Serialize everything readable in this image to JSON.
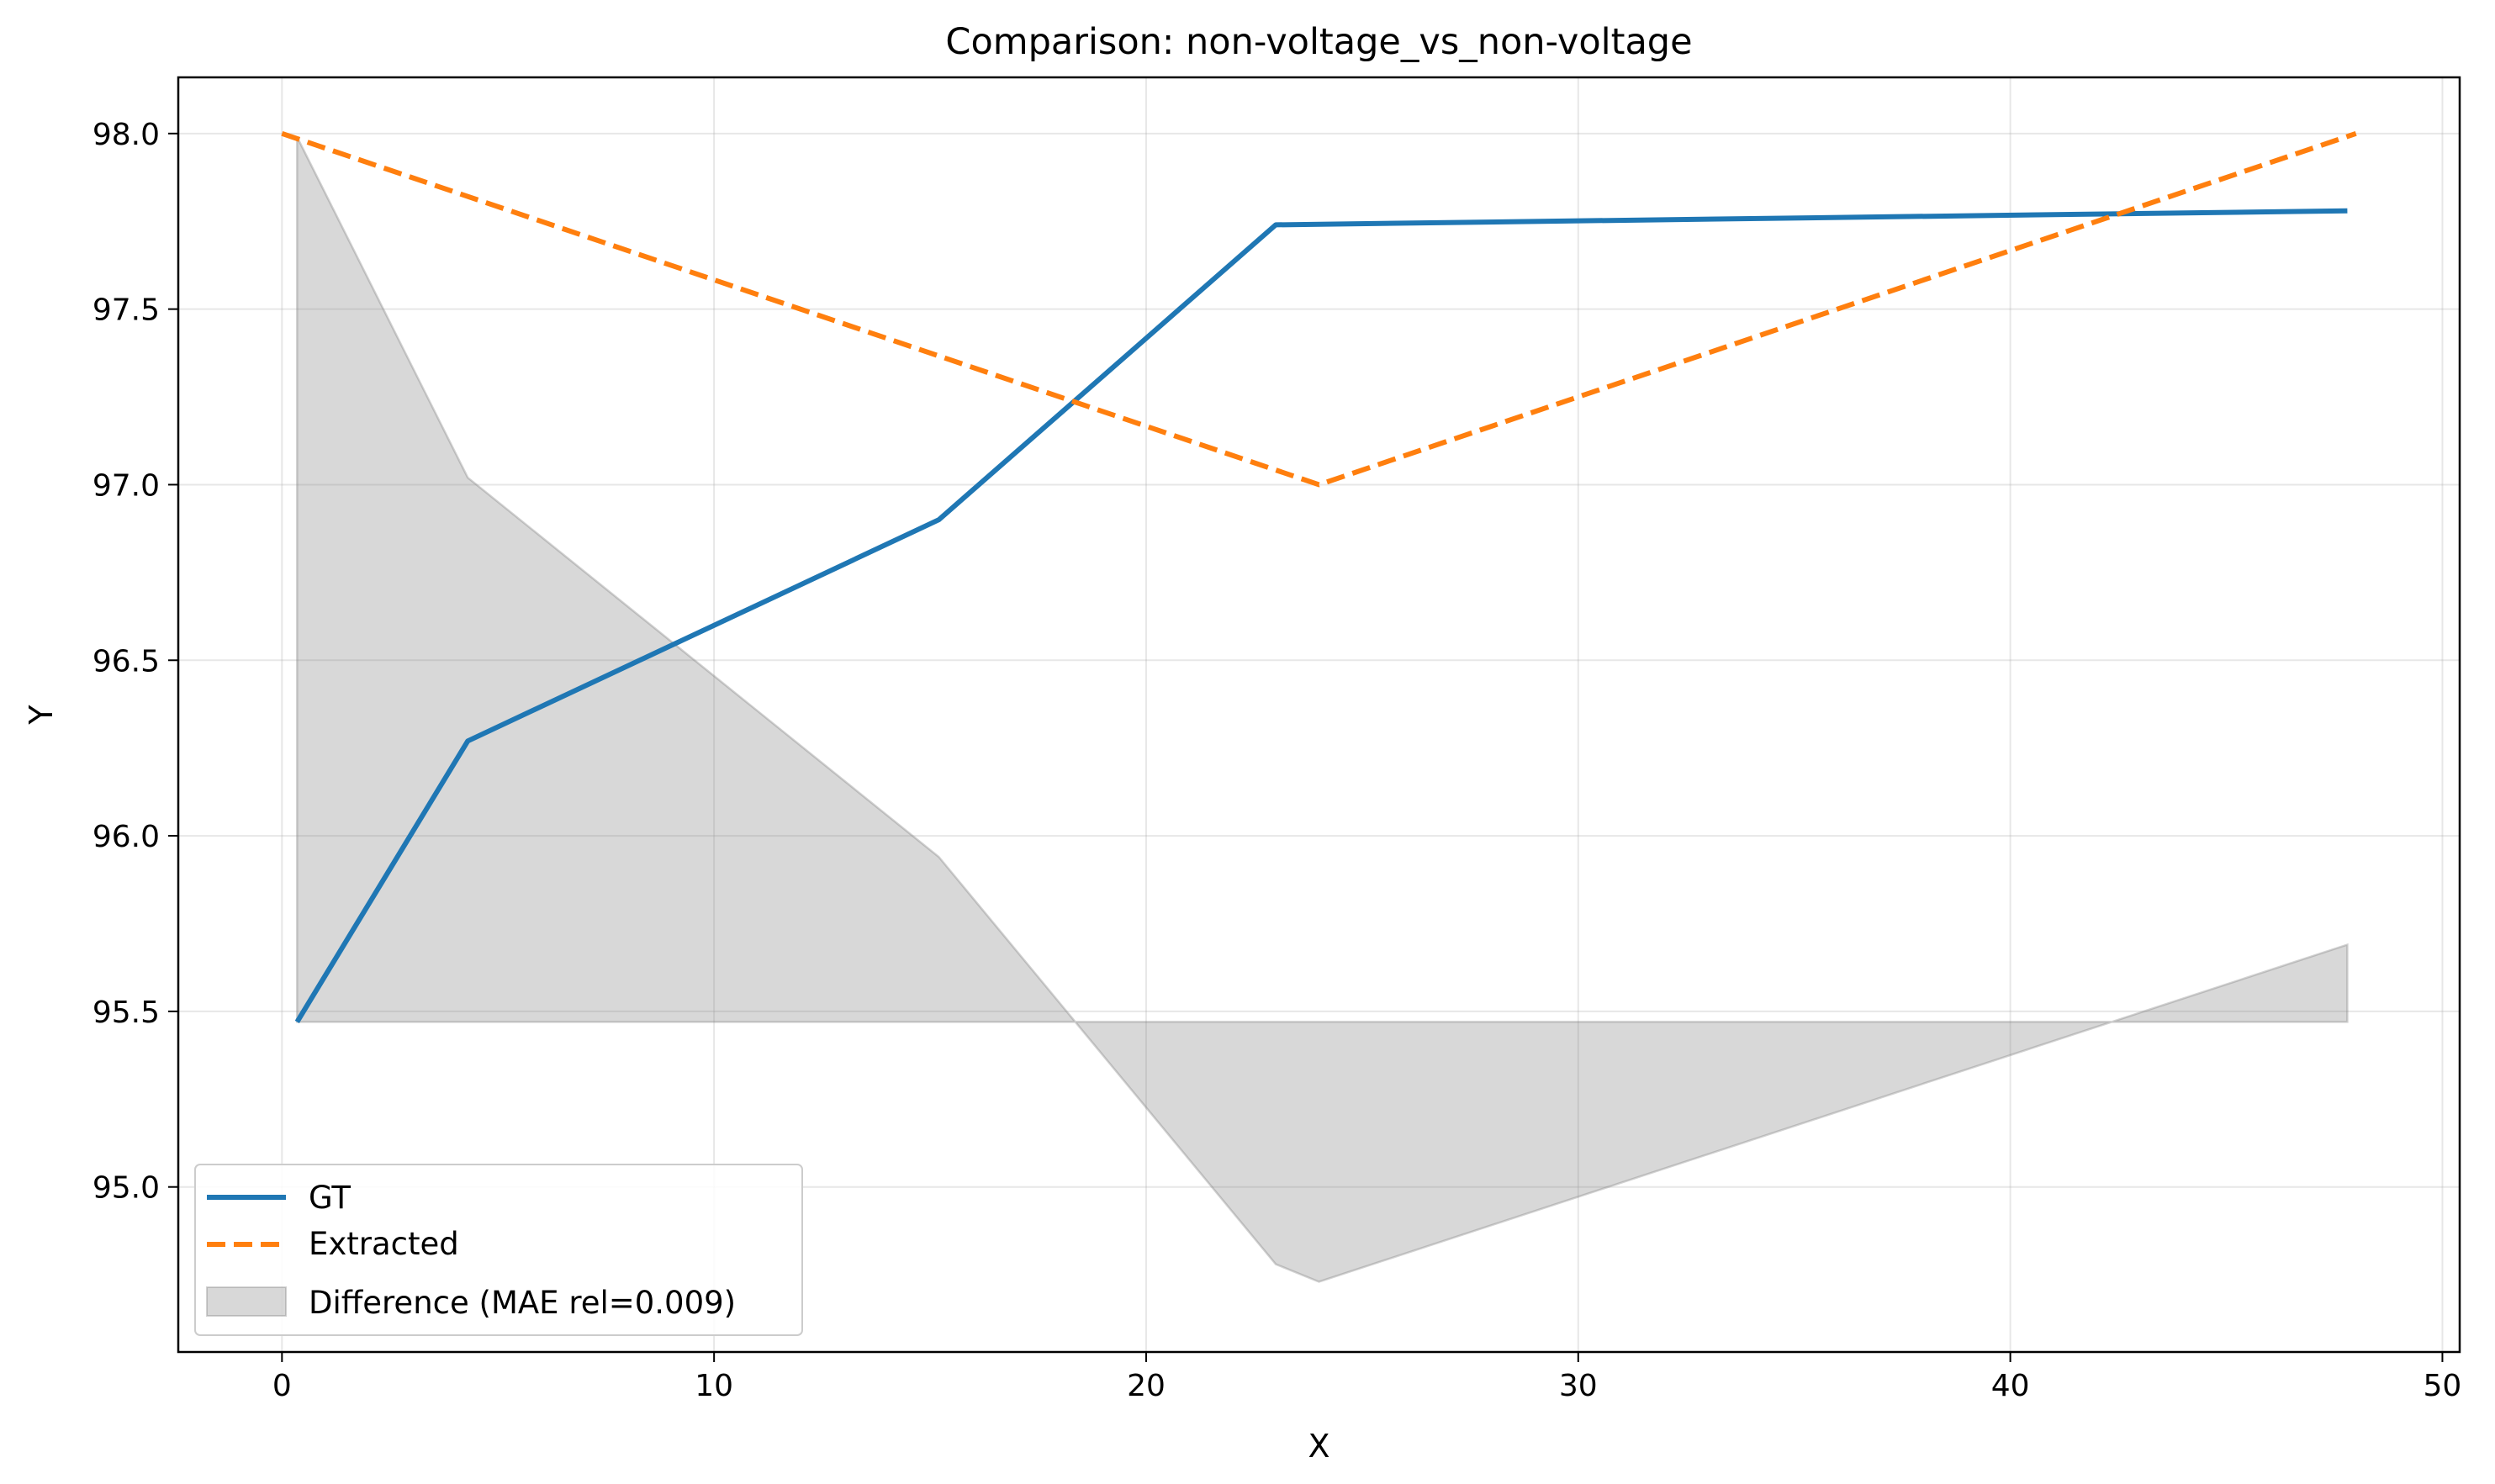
{
  "chart_data": {
    "type": "line",
    "title": "Comparison: non-voltage_vs_non-voltage",
    "xlabel": "X",
    "ylabel": "Y",
    "xlim": [
      -2.4,
      50.4
    ],
    "ylim": [
      94.53,
      98.16
    ],
    "xticks": [
      0,
      10,
      20,
      30,
      40,
      50
    ],
    "yticks": [
      95.0,
      95.5,
      96.0,
      96.5,
      97.0,
      97.5,
      98.0
    ],
    "grid": true,
    "legend_position": "lower-left",
    "series": [
      {
        "name": "GT",
        "color": "#1f77b4",
        "style": "solid",
        "points": [
          [
            0.35,
            95.47
          ],
          [
            4.3,
            96.27
          ],
          [
            15.2,
            96.9
          ],
          [
            23.0,
            97.74
          ],
          [
            47.8,
            97.78
          ]
        ]
      },
      {
        "name": "Extracted",
        "color": "#ff7f0e",
        "style": "dashed",
        "points": [
          [
            0.0,
            98.0
          ],
          [
            24.0,
            97.0
          ],
          [
            48.0,
            98.0
          ]
        ]
      }
    ],
    "difference": {
      "name": "Difference (MAE rel=0.009)",
      "color": "#7f7f7f",
      "baseline": 95.47,
      "points": [
        [
          0.35,
          97.99
        ],
        [
          4.3,
          97.02
        ],
        [
          15.2,
          95.94
        ],
        [
          23.0,
          94.78
        ],
        [
          24.0,
          94.73
        ],
        [
          47.8,
          95.69
        ]
      ]
    }
  }
}
